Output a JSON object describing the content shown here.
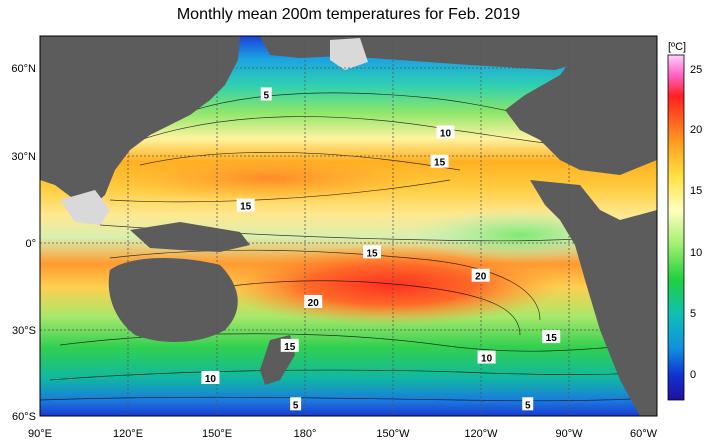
{
  "title": "Monthly mean 200m temperatures for Feb. 2019",
  "colorbar": {
    "unit": "[ºC]",
    "ticks": [
      "25",
      "20",
      "15",
      "10",
      "5",
      "0"
    ]
  },
  "axes": {
    "x_ticks": [
      "90°E",
      "120°E",
      "150°E",
      "180°",
      "150°W",
      "120°W",
      "90°W",
      "60°W"
    ],
    "y_ticks": [
      "60°N",
      "30°N",
      "0°",
      "30°S",
      "60°S"
    ]
  },
  "contour_labels": [
    {
      "text": "5",
      "lon": 167,
      "lat": 50
    },
    {
      "text": "10",
      "lon": 228,
      "lat": 37
    },
    {
      "text": "15",
      "lon": 226,
      "lat": 27
    },
    {
      "text": "15",
      "lon": 160,
      "lat": 12
    },
    {
      "text": "15",
      "lon": 203,
      "lat": -4
    },
    {
      "text": "20",
      "lon": 240,
      "lat": -12
    },
    {
      "text": "20",
      "lon": 183,
      "lat": -21
    },
    {
      "text": "15",
      "lon": 264,
      "lat": -33
    },
    {
      "text": "15",
      "lon": 175,
      "lat": -36
    },
    {
      "text": "10",
      "lon": 242,
      "lat": -40
    },
    {
      "text": "10",
      "lon": 148,
      "lat": -47
    },
    {
      "text": "5",
      "lon": 177,
      "lat": -56
    },
    {
      "text": "5",
      "lon": 256,
      "lat": -56
    }
  ],
  "colors": {
    "land": "#5c5c5c",
    "ice": "#d9d9d9"
  }
}
